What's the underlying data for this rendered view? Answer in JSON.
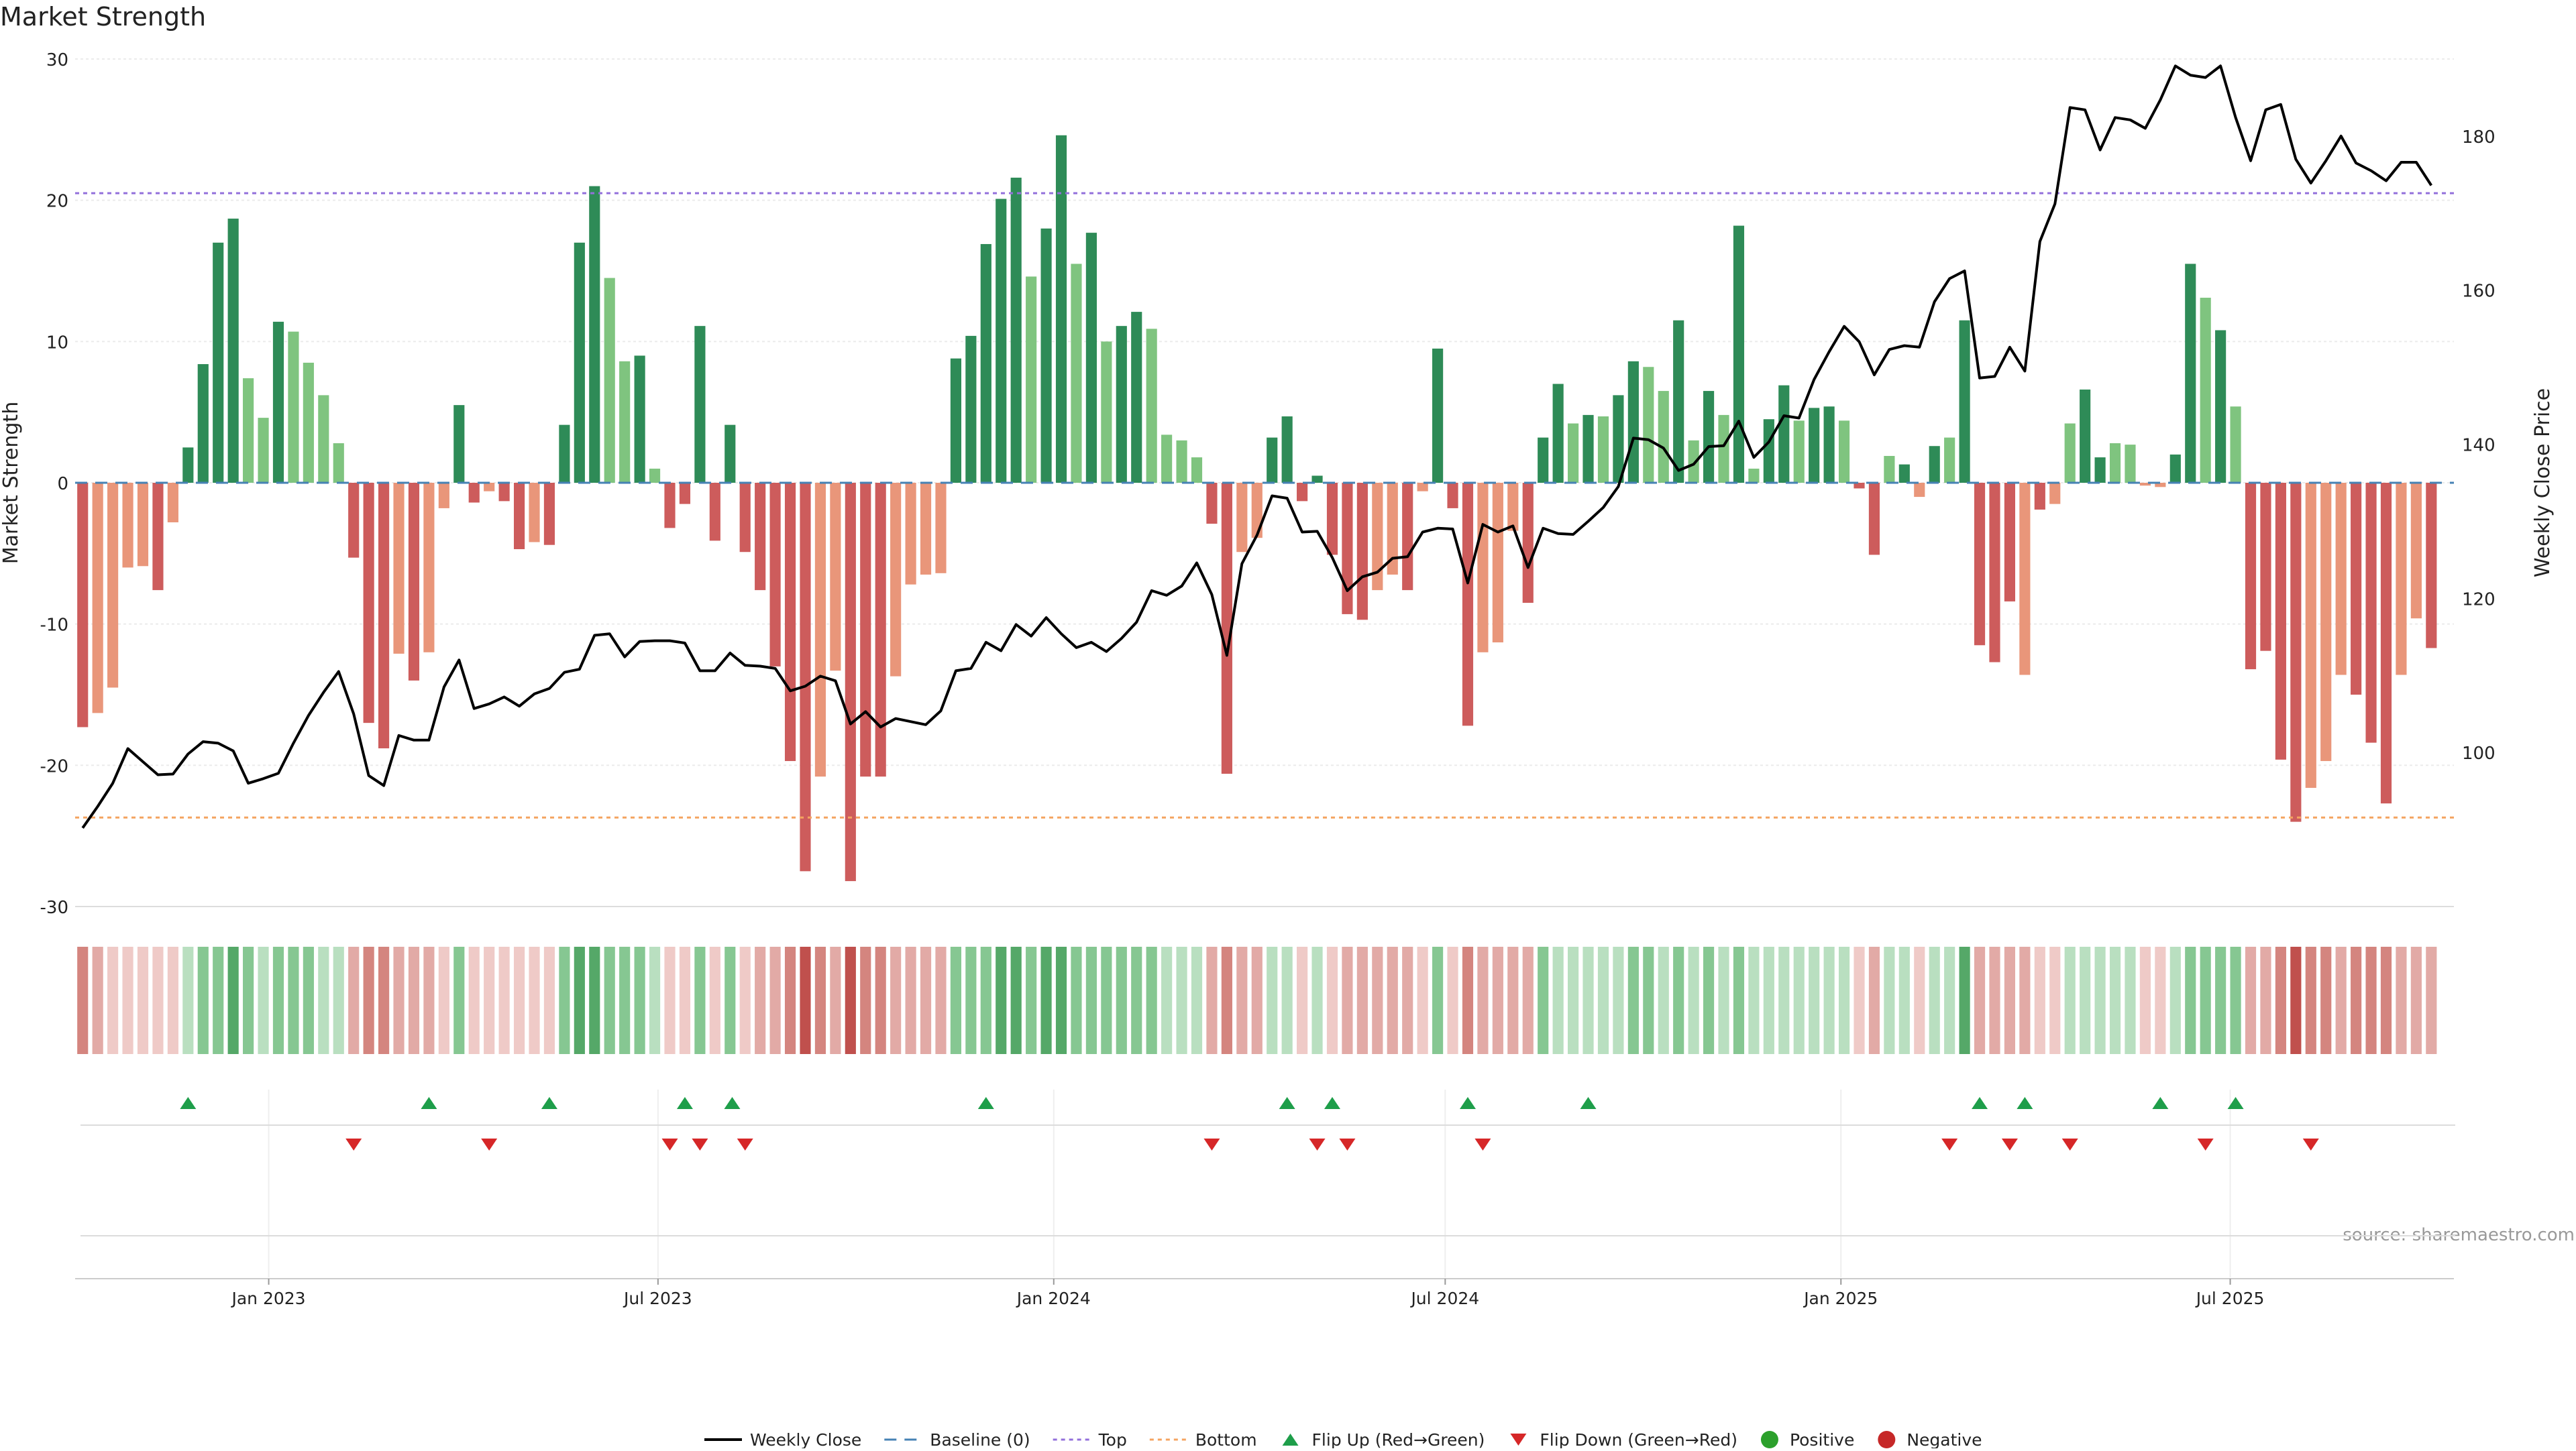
{
  "chart_data": {
    "type": "bar",
    "title": "Market Strength",
    "ylabel": "Market Strength",
    "y2label": "Weekly Close Price",
    "ylim": [
      -30,
      30
    ],
    "y2lim": [
      80,
      190
    ],
    "yticks": [
      -30,
      -20,
      -10,
      0,
      10,
      20,
      30
    ],
    "y2ticks": [
      100,
      120,
      140,
      160,
      180
    ],
    "x_start": "2022-10-03",
    "x_end": "2025-10-13",
    "xticks": [
      {
        "date": "2023-01-01",
        "label": "Jan 2023"
      },
      {
        "date": "2023-07-01",
        "label": "Jul 2023"
      },
      {
        "date": "2024-01-01",
        "label": "Jan 2024"
      },
      {
        "date": "2024-07-01",
        "label": "Jul 2024"
      },
      {
        "date": "2025-01-01",
        "label": "Jan 2025"
      },
      {
        "date": "2025-07-01",
        "label": "Jul 2025"
      }
    ],
    "first_week": "2022-10-03",
    "top_line": 20.5,
    "bottom_line": -23.7,
    "source": "source: sharemaestro.com",
    "colors": {
      "green_strong": "#2e8b57",
      "green_light": "#7fc47f",
      "red_strong": "#cd5c5c",
      "red_light": "#e9967a",
      "price_line": "#000000",
      "top_line": "#9370db",
      "bottom_line": "#f4a460",
      "baseline": "#4682b4",
      "flip_up": "#1e9e4a",
      "flip_down": "#d62728",
      "positive": "#2ca02c",
      "negative": "#c62828"
    },
    "series": [
      {
        "name": "Market Strength",
        "values": [
          -17.3,
          -16.3,
          -14.5,
          -6.0,
          -5.9,
          -7.6,
          -2.8,
          2.5,
          8.4,
          17.0,
          18.7,
          7.4,
          4.6,
          11.4,
          10.7,
          8.5,
          6.2,
          2.8,
          -5.3,
          -17.0,
          -18.8,
          -12.1,
          -14.0,
          -12.0,
          -1.8,
          5.5,
          -1.4,
          -0.6,
          -1.3,
          -4.7,
          -4.2,
          -4.4,
          4.1,
          17.0,
          21.0,
          14.5,
          8.6,
          9.0,
          1.0,
          -3.2,
          -1.5,
          11.1,
          -4.1,
          4.1,
          -4.9,
          -7.6,
          -13.0,
          -19.7,
          -27.5,
          -20.8,
          -13.3,
          -28.2,
          -20.8,
          -20.8,
          -13.7,
          -7.2,
          -6.5,
          -6.4,
          8.8,
          10.4,
          16.9,
          20.1,
          21.6,
          14.6,
          18.0,
          24.6,
          15.5,
          17.7,
          10.0,
          11.1,
          12.1,
          10.9,
          3.4,
          3.0,
          1.8,
          -2.9,
          -20.6,
          -4.9,
          -3.9,
          3.2,
          4.7,
          -1.3,
          0.5,
          -5.1,
          -9.3,
          -9.7,
          -7.6,
          -6.5,
          -7.6,
          -0.6,
          9.5,
          -1.8,
          -17.2,
          -12.0,
          -11.3,
          -3.4,
          -8.5,
          3.2,
          7.0,
          4.2,
          4.8,
          4.7,
          6.2,
          8.6,
          8.2,
          6.5,
          11.5,
          3.0,
          6.5,
          4.8,
          18.2,
          1.0,
          4.5,
          6.9,
          4.4,
          5.3,
          5.4,
          4.4,
          -0.4,
          -5.1,
          1.9,
          1.3,
          -1.0,
          2.6,
          3.2,
          11.5,
          -11.5,
          -12.7,
          -8.4,
          -13.6,
          -1.9,
          -1.5,
          4.2,
          6.6,
          1.8,
          2.8,
          2.7,
          -0.2,
          -0.3,
          2.0,
          15.5,
          13.1,
          10.8,
          5.4,
          -13.2,
          -11.9,
          -19.6,
          -24.0,
          -21.6,
          -19.7,
          -13.6,
          -15.0,
          -18.4,
          -22.7,
          -13.6,
          -9.6,
          -11.7
        ],
        "bar_tone": [
          "s",
          "l",
          "l",
          "l",
          "l",
          "s",
          "l",
          "s",
          "s",
          "s",
          "s",
          "l",
          "l",
          "s",
          "l",
          "l",
          "l",
          "l",
          "s",
          "s",
          "s",
          "l",
          "s",
          "l",
          "l",
          "s",
          "s",
          "l",
          "s",
          "s",
          "l",
          "s",
          "s",
          "s",
          "s",
          "l",
          "l",
          "s",
          "l",
          "s",
          "s",
          "s",
          "s",
          "s",
          "s",
          "s",
          "s",
          "s",
          "s",
          "l",
          "l",
          "s",
          "s",
          "s",
          "l",
          "l",
          "l",
          "l",
          "s",
          "s",
          "s",
          "s",
          "s",
          "l",
          "s",
          "s",
          "l",
          "s",
          "l",
          "s",
          "s",
          "l",
          "l",
          "l",
          "l",
          "s",
          "s",
          "l",
          "l",
          "s",
          "s",
          "s",
          "s",
          "s",
          "s",
          "s",
          "l",
          "l",
          "s",
          "l",
          "s",
          "s",
          "s",
          "l",
          "l",
          "l",
          "s",
          "s",
          "s",
          "l",
          "s",
          "l",
          "s",
          "s",
          "l",
          "l",
          "s",
          "l",
          "s",
          "l",
          "s",
          "l",
          "s",
          "s",
          "l",
          "s",
          "s",
          "l",
          "s",
          "s",
          "l",
          "s",
          "l",
          "s",
          "l",
          "s",
          "s",
          "s",
          "s",
          "l",
          "s",
          "l",
          "l",
          "s",
          "s",
          "l",
          "l",
          "l",
          "l",
          "s",
          "s",
          "l",
          "s",
          "l",
          "s",
          "s",
          "s",
          "s",
          "l",
          "l",
          "l",
          "s",
          "s",
          "s",
          "l",
          "l",
          "s"
        ]
      },
      {
        "name": "Weekly Close",
        "values": [
          90.2,
          93.0,
          96.0,
          100.5,
          98.8,
          97.1,
          97.2,
          99.8,
          101.4,
          101.2,
          100.2,
          96.0,
          96.6,
          97.3,
          101.2,
          104.8,
          107.8,
          110.5,
          105.0,
          97.0,
          95.7,
          102.2,
          101.6,
          101.6,
          108.5,
          112.0,
          105.7,
          106.3,
          107.2,
          106.0,
          107.6,
          108.3,
          110.4,
          110.8,
          115.2,
          115.4,
          112.4,
          114.4,
          114.5,
          114.5,
          114.2,
          110.6,
          110.6,
          112.9,
          111.3,
          111.2,
          110.9,
          108.0,
          108.6,
          109.9,
          109.3,
          103.7,
          105.3,
          103.3,
          104.4,
          104.0,
          103.6,
          105.4,
          110.6,
          110.9,
          114.3,
          113.2,
          116.6,
          115.1,
          117.5,
          115.4,
          113.6,
          114.3,
          113.1,
          114.8,
          116.9,
          121.0,
          120.4,
          121.6,
          124.6,
          120.5,
          112.6,
          124.5,
          128.2,
          133.3,
          133.0,
          128.6,
          128.7,
          125.3,
          121.0,
          122.8,
          123.4,
          125.2,
          125.4,
          128.6,
          129.1,
          129.0,
          122.0,
          129.6,
          128.6,
          129.4,
          124.0,
          129.1,
          128.4,
          128.3,
          130.0,
          131.8,
          134.5,
          140.8,
          140.6,
          139.5,
          136.6,
          137.4,
          139.7,
          139.8,
          143.0,
          138.3,
          140.3,
          143.7,
          143.4,
          148.4,
          152.0,
          155.3,
          153.3,
          149.0,
          152.3,
          152.8,
          152.6,
          158.5,
          161.5,
          162.5,
          148.6,
          148.8,
          152.6,
          149.5,
          166.3,
          171.2,
          183.7,
          183.4,
          178.2,
          182.4,
          182.1,
          181.0,
          184.7,
          189.1,
          187.9,
          187.6,
          189.1,
          182.4,
          176.8,
          183.4,
          184.1,
          177.0,
          173.9,
          176.8,
          180.0,
          176.5,
          175.5,
          174.2,
          176.6,
          176.6,
          173.6
        ]
      }
    ],
    "strength_strip": {
      "levels": [
        "ls",
        "ll",
        "lx",
        "lx",
        "lx",
        "lx",
        "lx",
        "gx",
        "gl",
        "gl",
        "gs",
        "gl",
        "gx",
        "gl",
        "gl",
        "gl",
        "gx",
        "gx",
        "ll",
        "ls",
        "ls",
        "ll",
        "ll",
        "ll",
        "lx",
        "gl",
        "lx",
        "lx",
        "lx",
        "lx",
        "lx",
        "lx",
        "gl",
        "gs",
        "gs",
        "gl",
        "gl",
        "gl",
        "gx",
        "lx",
        "lx",
        "gl",
        "lx",
        "gl",
        "lx",
        "ll",
        "ll",
        "ls",
        "ss",
        "ls",
        "ll",
        "ss",
        "ls",
        "ls",
        "ll",
        "ll",
        "ll",
        "ll",
        "gl",
        "gl",
        "gl",
        "gs",
        "gs",
        "gl",
        "gs",
        "gs",
        "gl",
        "gl",
        "gl",
        "gl",
        "gl",
        "gl",
        "gx",
        "gx",
        "gx",
        "ll",
        "ls",
        "ll",
        "ll",
        "gx",
        "gx",
        "lx",
        "gx",
        "lx",
        "ll",
        "ll",
        "ll",
        "ll",
        "ll",
        "lx",
        "gl",
        "lx",
        "ls",
        "ll",
        "ll",
        "ll",
        "ll",
        "gl",
        "gx",
        "gx",
        "gx",
        "gx",
        "gx",
        "gl",
        "gl",
        "gx",
        "gl",
        "gx",
        "gl",
        "gx",
        "gl",
        "gx",
        "gx",
        "gx",
        "gx",
        "gx",
        "gx",
        "gx",
        "lx",
        "ll",
        "gx",
        "gx",
        "lx",
        "gx",
        "gx",
        "gs",
        "ll",
        "ll",
        "ll",
        "ll",
        "lx",
        "lx",
        "gx",
        "gx",
        "gx",
        "gx",
        "gx",
        "lx",
        "lx",
        "gx",
        "gl",
        "gl",
        "gl",
        "gl",
        "ll",
        "ll",
        "ls",
        "ss",
        "ls",
        "ls",
        "ll",
        "ls",
        "ls",
        "ls",
        "ll",
        "ll",
        "ll"
      ]
    },
    "flips_up": [
      "2022-11-21",
      "2023-03-13",
      "2023-05-08",
      "2023-07-10",
      "2023-08-01",
      "2023-11-27",
      "2024-04-15",
      "2024-05-06",
      "2024-07-08",
      "2024-09-02",
      "2025-03-03",
      "2025-03-24",
      "2025-05-26",
      "2025-06-30"
    ],
    "flips_down": [
      "2023-02-06",
      "2023-04-10",
      "2023-07-03",
      "2023-07-17",
      "2023-08-07",
      "2024-03-11",
      "2024-04-29",
      "2024-05-13",
      "2024-07-15",
      "2025-02-17",
      "2025-03-17",
      "2025-04-14",
      "2025-06-16",
      "2025-08-04"
    ],
    "legend": [
      {
        "key": "weekly-close",
        "label": "Weekly Close"
      },
      {
        "key": "baseline",
        "label": "Baseline (0)"
      },
      {
        "key": "top",
        "label": "Top"
      },
      {
        "key": "bottom",
        "label": "Bottom"
      },
      {
        "key": "flip-up",
        "label": "Flip Up (Red→Green)"
      },
      {
        "key": "flip-down",
        "label": "Flip Down (Green→Red)"
      },
      {
        "key": "positive",
        "label": "Positive"
      },
      {
        "key": "negative",
        "label": "Negative"
      }
    ]
  }
}
